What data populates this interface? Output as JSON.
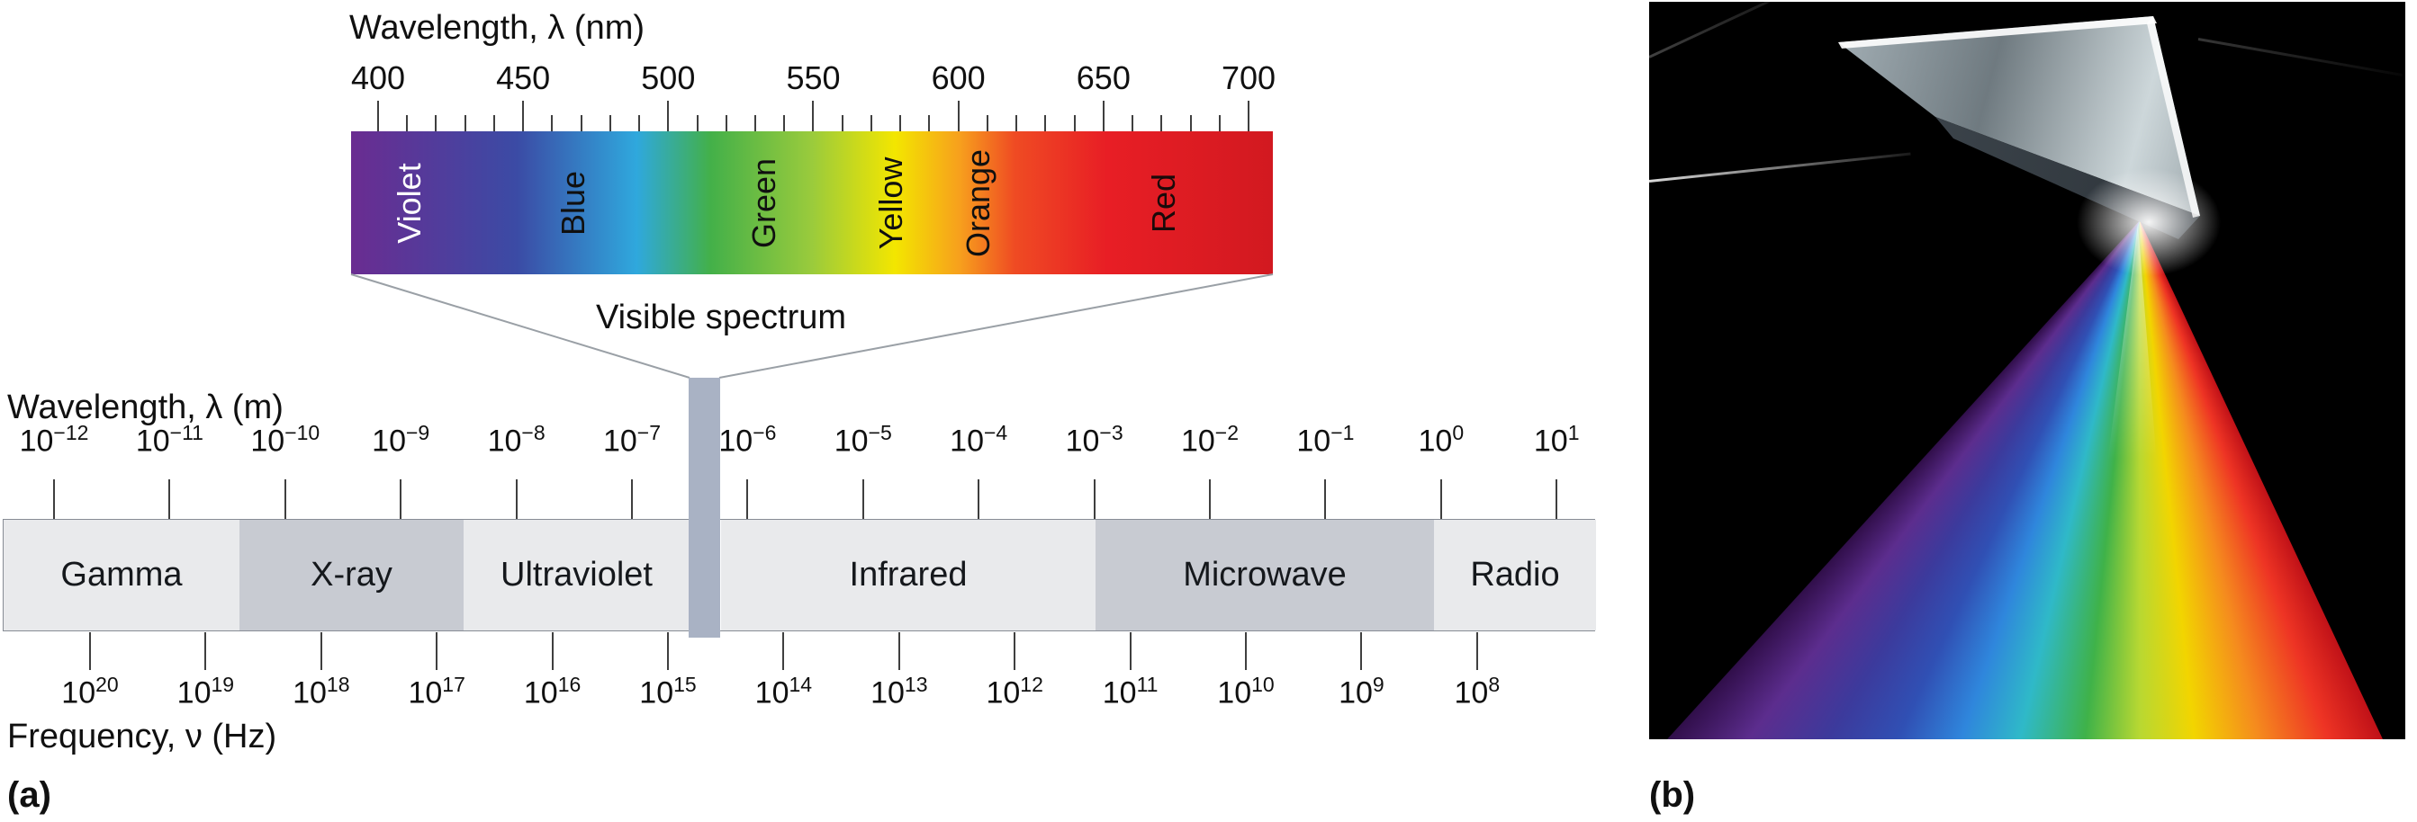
{
  "panel_a": {
    "label": "(a)",
    "nm_scale": {
      "title": "Wavelength, λ (nm)",
      "ticks": [
        "400",
        "450",
        "500",
        "550",
        "600",
        "650",
        "700"
      ]
    },
    "visible_bar": {
      "labels": [
        "Violet",
        "Blue",
        "Green",
        "Yellow",
        "Orange",
        "Red"
      ],
      "label_colors": [
        "#ffffff",
        "#101010",
        "#101010",
        "#101010",
        "#101010",
        "#1a0a0a"
      ],
      "gradient": [
        "#6a2c91",
        "#3b4ba5",
        "#2fa8dd",
        "#43b049",
        "#9acb3c",
        "#f3e600",
        "#f7a01d",
        "#ef4b23",
        "#e81e25",
        "#d21920"
      ]
    },
    "visible_spectrum_label": "Visible spectrum",
    "m_scale": {
      "title": "Wavelength, λ (m)",
      "base": "10",
      "exponents": [
        "−12",
        "−11",
        "−10",
        "−9",
        "−8",
        "−7",
        "−6",
        "−5",
        "−4",
        "−3",
        "−2",
        "−1",
        "0",
        "1"
      ]
    },
    "em_bar": {
      "regions": [
        {
          "label": "Gamma",
          "shade": "light"
        },
        {
          "label": "X-ray",
          "shade": "dark"
        },
        {
          "label": "Ultraviolet",
          "shade": "light"
        },
        {
          "label": "Infrared",
          "shade": "light"
        },
        {
          "label": "Microwave",
          "shade": "dark"
        },
        {
          "label": "Radio",
          "shade": "light"
        }
      ],
      "shade_colors": {
        "light": "#e9eaec",
        "dark": "#c8cbd2"
      },
      "visible_band_color": "#a9b2c4"
    },
    "freq_scale": {
      "title": "Frequency, ν (Hz)",
      "base": "10",
      "exponents": [
        "20",
        "19",
        "18",
        "17",
        "16",
        "15",
        "14",
        "13",
        "12",
        "11",
        "10",
        "9",
        "8"
      ]
    }
  },
  "panel_b": {
    "label": "(b)"
  }
}
